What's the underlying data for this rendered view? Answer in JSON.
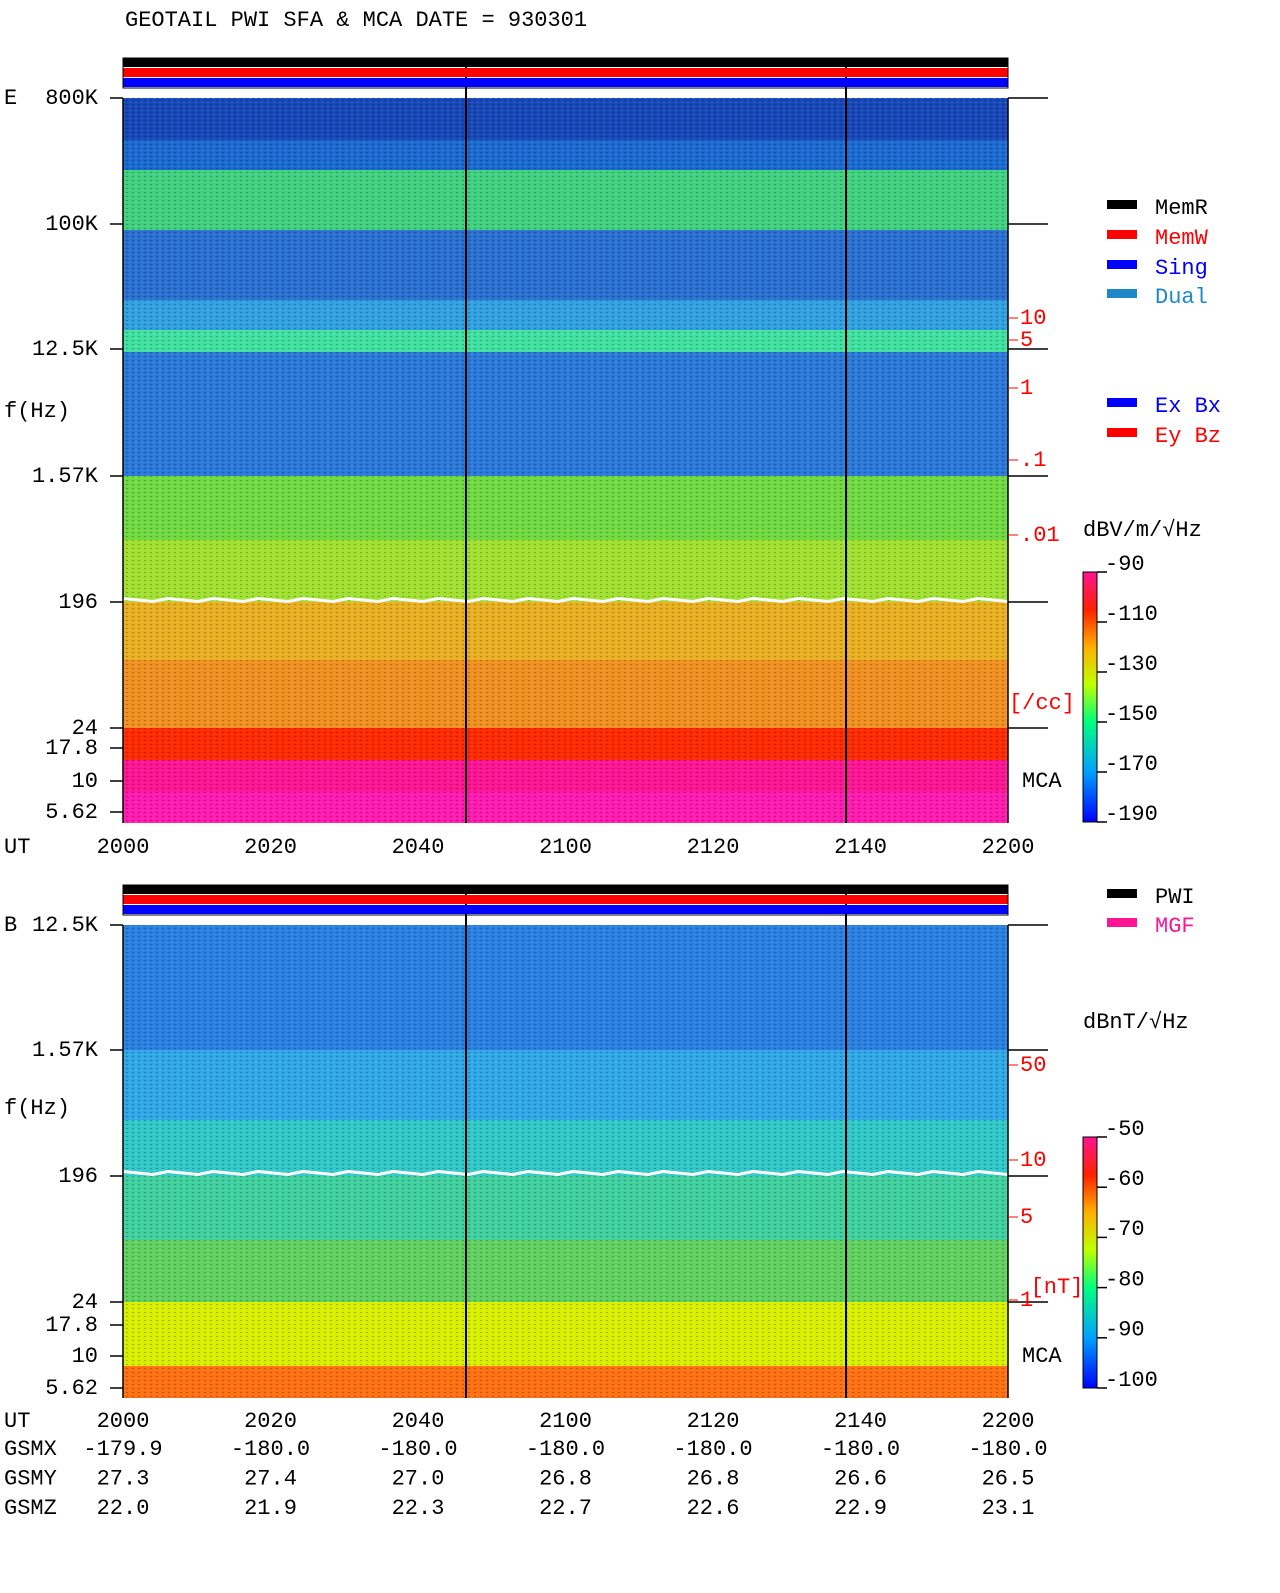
{
  "header": {
    "title": "GEOTAIL  PWI SFA & MCA   DATE = 930301"
  },
  "panels": [
    {
      "component": "E",
      "freq_label": "f(Hz)",
      "freq_ticks": [
        "800K",
        "100K",
        "12.5K",
        "1.57K",
        "196",
        "24",
        "17.8",
        "10",
        "5.62"
      ],
      "time_label": "UT",
      "time_ticks": [
        "2000",
        "2020",
        "2040",
        "2100",
        "2120",
        "2140",
        "2200"
      ],
      "right_scale": {
        "ticks": [
          "10",
          "5",
          "1",
          ".1",
          ".01"
        ],
        "unit": "[/cc]"
      },
      "mca_label": "MCA",
      "colorbar": {
        "unit": "dBV/m/√Hz",
        "ticks": [
          -90,
          -110,
          -130,
          -150,
          -170,
          -190
        ]
      },
      "legends": [
        [
          {
            "label": "MemR",
            "color": "#000000"
          },
          {
            "label": "MemW",
            "color": "#ff0000"
          },
          {
            "label": "Sing",
            "color": "#0000ff"
          },
          {
            "label": "Dual",
            "color": "#1e88c8"
          }
        ],
        [
          {
            "label": "Ex Bx",
            "color": "#0000ff"
          },
          {
            "label": "Ey Bz",
            "color": "#ff0000"
          }
        ]
      ]
    },
    {
      "component": "B",
      "freq_label": "f(Hz)",
      "freq_ticks": [
        "12.5K",
        "1.57K",
        "196",
        "24",
        "17.8",
        "10",
        "5.62"
      ],
      "time_label": "UT",
      "time_ticks": [
        "2000",
        "2020",
        "2040",
        "2100",
        "2120",
        "2140",
        "2200"
      ],
      "right_scale": {
        "ticks": [
          "50",
          "10",
          "5",
          "1"
        ],
        "unit": "[nT]"
      },
      "mca_label": "MCA",
      "colorbar": {
        "unit": "dBnT/√Hz",
        "ticks": [
          -50,
          -60,
          -70,
          -80,
          -90,
          -100
        ]
      },
      "legends": [
        [
          {
            "label": "PWI",
            "color": "#000000"
          },
          {
            "label": "MGF",
            "color": "#ff1493"
          }
        ]
      ]
    }
  ],
  "orbit": {
    "rows": [
      {
        "label": "GSMX",
        "values": [
          "-179.9",
          "-180.0",
          "-180.0",
          "-180.0",
          "-180.0",
          "-180.0",
          "-180.0"
        ]
      },
      {
        "label": "GSMY",
        "values": [
          "27.3",
          "27.4",
          "27.0",
          "26.8",
          "26.8",
          "26.6",
          "26.5"
        ]
      },
      {
        "label": "GSMZ",
        "values": [
          "22.0",
          "21.9",
          "22.3",
          "22.7",
          "22.6",
          "22.9",
          "23.1"
        ]
      }
    ]
  }
}
